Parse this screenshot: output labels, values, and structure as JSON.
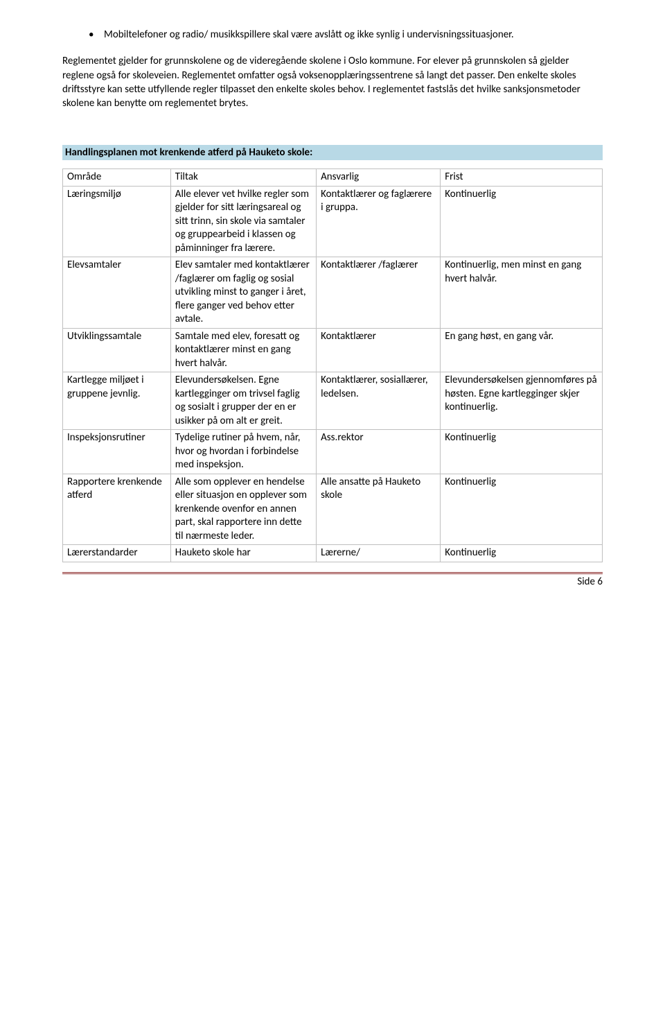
{
  "bullet": {
    "text": "Mobiltelefoner og radio/ musikkspillere skal være avslått og ikke synlig i undervisningssituasjoner."
  },
  "para": {
    "text": "Reglementet gjelder for grunnskolene og de videregående skolene i Oslo kommune. For elever på grunnskolen så gjelder reglene også for skoleveien. Reglementet omfatter også voksenopplæringssentrene så langt det passer. Den enkelte skoles driftsstyre kan sette utfyllende regler tilpasset den enkelte skoles behov. I reglementet fastslås det hvilke sanksjonsmetoder skolene kan benytte om reglementet brytes."
  },
  "heading": "Handlingsplanen mot krenkende atferd på Hauketo skole:",
  "table": {
    "headers": [
      "Område",
      "Tiltak",
      "Ansvarlig",
      "Frist"
    ],
    "rows": [
      {
        "c1": "Læringsmiljø",
        "c2": "Alle elever vet hvilke regler som gjelder for sitt læringsareal og sitt trinn, sin skole via samtaler og gruppearbeid i klassen og påminninger fra lærere.",
        "c3": "Kontaktlærer og faglærere i gruppa.",
        "c4": "Kontinuerlig"
      },
      {
        "c1": "Elevsamtaler",
        "c2": "Elev samtaler med kontaktlærer /faglærer om faglig og sosial utvikling minst to ganger i året, flere ganger ved behov etter avtale.",
        "c3": "Kontaktlærer /faglærer",
        "c4": "Kontinuerlig, men minst en gang hvert halvår."
      },
      {
        "c1": "Utviklingssamtale",
        "c2": "Samtale med elev, foresatt og kontaktlærer minst en gang hvert halvår.",
        "c3": "Kontaktlærer",
        "c4": "En gang høst, en gang vår."
      },
      {
        "c1": "Kartlegge miljøet i gruppene jevnlig.",
        "c2": "Elevundersøkelsen. Egne kartlegginger om trivsel faglig og sosialt i grupper der en er usikker på om alt er greit.",
        "c3": "Kontaktlærer, sosiallærer, ledelsen.",
        "c4": "Elevundersøkelsen gjennomføres på høsten. Egne kartlegginger skjer kontinuerlig."
      },
      {
        "c1": "Inspeksjonsrutiner",
        "c2": "Tydelige rutiner på hvem, når, hvor og hvordan i forbindelse med inspeksjon.",
        "c3": "Ass.rektor",
        "c4": "Kontinuerlig"
      },
      {
        "c1": "Rapportere krenkende atferd",
        "c2": "Alle som opplever en hendelse eller situasjon en opplever som krenkende ovenfor en annen part, skal rapportere inn dette til nærmeste leder.",
        "c3": "Alle ansatte på Hauketo skole",
        "c4": "Kontinuerlig"
      },
      {
        "c1": "Lærerstandarder",
        "c2": "Hauketo skole har",
        "c3": "Lærerne/",
        "c4": "Kontinuerlig"
      }
    ]
  },
  "footer": {
    "page": "Side 6"
  }
}
